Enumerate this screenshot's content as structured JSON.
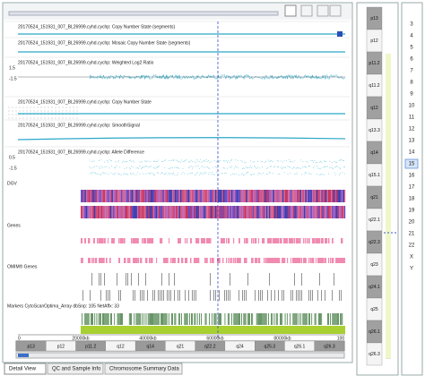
{
  "tracks": [
    {
      "label": "20170524_151931_007_BL26999.cyhd.cychp: Copy Number State (segments)"
    },
    {
      "label": "20170524_151931_007_BL26999.cyhd.cychp: Mosaic Copy Number State (segments)"
    },
    {
      "label": "20170524_151931_007_BL26999.cyhd.cychp: Weighted Log2 Ratio",
      "axis": [
        "1.5",
        "-1.5"
      ]
    },
    {
      "label": "20170524_151931_007_BL26999.cyhd.cychp: Copy Number State"
    },
    {
      "label": "20170524_151931_007_BL26999.cyhd.cychp: SmoothSignal"
    },
    {
      "label": "20170524_151931_007_BL26999.cyhd.cychp: Allele Difference",
      "axis": [
        "0.5",
        "-1.5"
      ]
    },
    {
      "label": "DGV"
    },
    {
      "label": "Genes"
    },
    {
      "label": "OMIM® Genes"
    },
    {
      "label": "Markers CytoScanOptima_Array dbSnp: 105 NetAffx: 33"
    }
  ],
  "position_axis": [
    "0",
    "20000kb",
    "40000kb",
    "60000kb",
    "80000kb",
    "100"
  ],
  "bottom_bands": [
    "p13",
    "p12",
    "p11.2",
    "q12",
    "q14",
    "q21",
    "q22.2",
    "q24",
    "q25.3",
    "q26.1",
    "q26.3"
  ],
  "ideogram_bands": [
    "p13",
    "p12",
    "p11.2",
    "q11.2",
    "q12",
    "q13.3",
    "q14",
    "q15.1",
    "q21",
    "q22.1",
    "q22.3",
    "q23",
    "q24.1",
    "q25",
    "q26.1",
    "q26.3"
  ],
  "chromosomes": [
    "3",
    "4",
    "5",
    "6",
    "7",
    "8",
    "9",
    "10",
    "11",
    "12",
    "13",
    "14",
    "15",
    "16",
    "17",
    "18",
    "19",
    "20",
    "21",
    "22",
    "X",
    "Y"
  ],
  "selected_chromosome": "15",
  "tabs": [
    "Detail View",
    "QC and Sample Info",
    "Chromosome Summary Data"
  ]
}
